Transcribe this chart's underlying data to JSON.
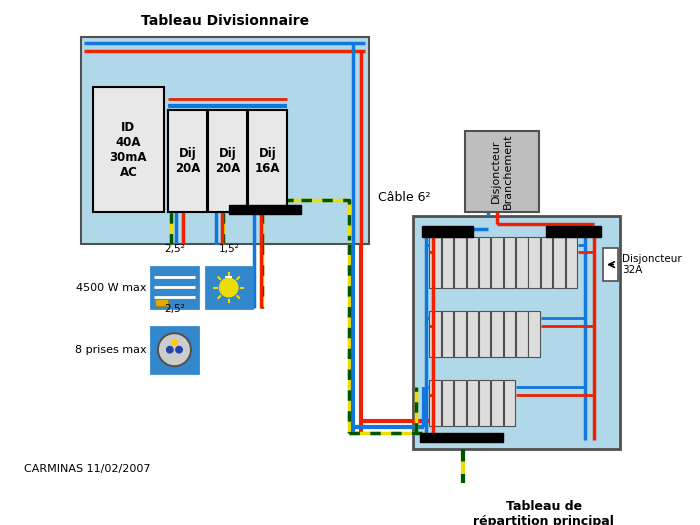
{
  "title_td": "Tableau Divisionnaire",
  "bg_white": "#FFFFFF",
  "light_blue": "#B0D8E8",
  "gray_box": "#BEBEBE",
  "dark_gray": "#505050",
  "black": "#000000",
  "red": "#EE2200",
  "blue": "#1177DD",
  "yellow": "#EEDD00",
  "green_stripe": "#005500",
  "device_blue": "#3388CC",
  "white": "#FFFFFF",
  "id_label": "ID\n40A\n30mA\nAC",
  "dij1_label": "Dij\n20A",
  "dij2_label": "Dij\n20A",
  "dij3_label": "Dij\n16A",
  "cable_label": "Câble 6²",
  "disj_branche": "Disjoncteur\nBranchement",
  "disj_32a": "Disjoncteur\n32A",
  "tableau_principal_label": "Tableau de\nrépartition principal",
  "label_4500": "4500 W max",
  "label_8prises": "8 prises max",
  "label_25sq_a": "2,5²",
  "label_15sq": "1,5²",
  "label_25sq_b": "2,5²",
  "footer": "CARMINAS 11/02/2007"
}
